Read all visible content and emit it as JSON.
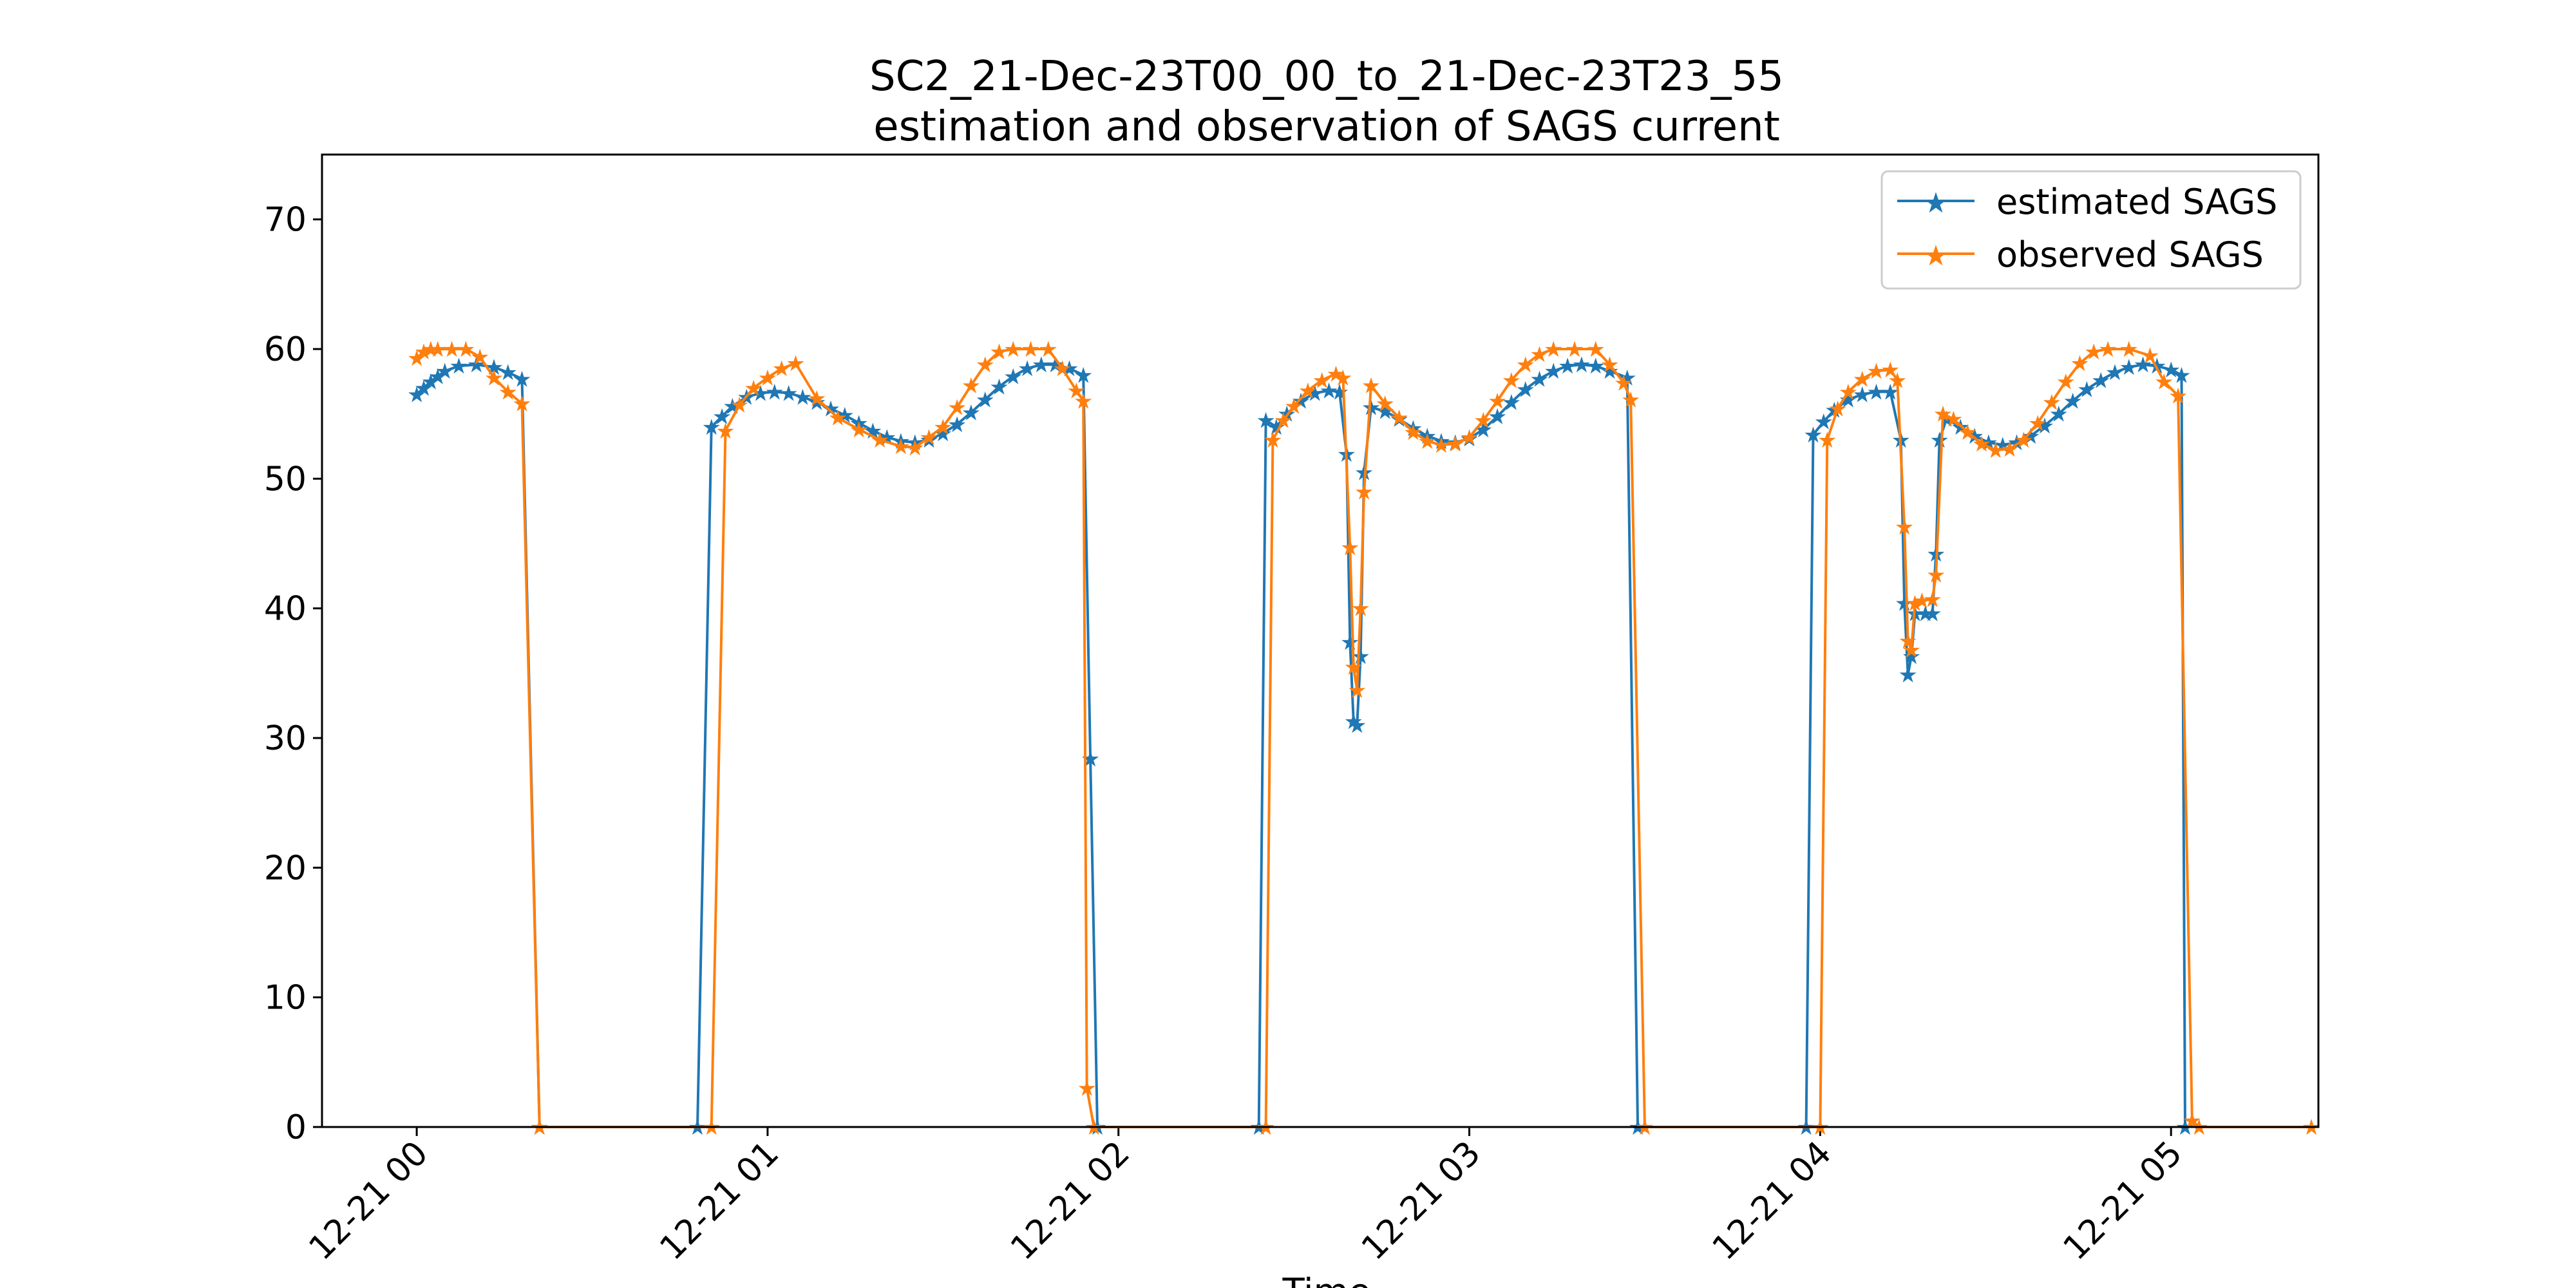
{
  "chart_data": {
    "type": "line",
    "title_line1": "SC2_21-Dec-23T00_00_to_21-Dec-23T23_55",
    "title_line2": "estimation and observation of SAGS current",
    "xlabel": "Time",
    "ylabel": "",
    "ylim": [
      0,
      75
    ],
    "xlim_hours": [
      -0.27,
      5.42
    ],
    "yticks": [
      0,
      10,
      20,
      30,
      40,
      50,
      60,
      70
    ],
    "xticks": [
      {
        "hour": 0,
        "label": "12-21 00"
      },
      {
        "hour": 1,
        "label": "12-21 01"
      },
      {
        "hour": 2,
        "label": "12-21 02"
      },
      {
        "hour": 3,
        "label": "12-21 03"
      },
      {
        "hour": 4,
        "label": "12-21 04"
      },
      {
        "hour": 5,
        "label": "12-21 05"
      }
    ],
    "legend": {
      "location": "upper right"
    },
    "series": [
      {
        "name": "estimated SAGS",
        "color": "#1f77b4",
        "marker": "star",
        "points": [
          [
            0.0,
            56.5
          ],
          [
            0.02,
            57.0
          ],
          [
            0.04,
            57.5
          ],
          [
            0.06,
            57.9
          ],
          [
            0.08,
            58.3
          ],
          [
            0.12,
            58.7
          ],
          [
            0.17,
            58.8
          ],
          [
            0.22,
            58.6
          ],
          [
            0.26,
            58.2
          ],
          [
            0.3,
            57.7
          ],
          [
            0.35,
            0
          ],
          [
            0.8,
            0
          ],
          [
            0.84,
            54.0
          ],
          [
            0.87,
            54.8
          ],
          [
            0.9,
            55.6
          ],
          [
            0.94,
            56.3
          ],
          [
            0.98,
            56.6
          ],
          [
            1.02,
            56.7
          ],
          [
            1.06,
            56.6
          ],
          [
            1.1,
            56.3
          ],
          [
            1.14,
            55.9
          ],
          [
            1.18,
            55.4
          ],
          [
            1.22,
            54.9
          ],
          [
            1.26,
            54.3
          ],
          [
            1.3,
            53.7
          ],
          [
            1.34,
            53.2
          ],
          [
            1.38,
            52.9
          ],
          [
            1.42,
            52.8
          ],
          [
            1.46,
            53.0
          ],
          [
            1.5,
            53.5
          ],
          [
            1.54,
            54.2
          ],
          [
            1.58,
            55.1
          ],
          [
            1.62,
            56.1
          ],
          [
            1.66,
            57.1
          ],
          [
            1.7,
            57.9
          ],
          [
            1.74,
            58.5
          ],
          [
            1.78,
            58.8
          ],
          [
            1.82,
            58.8
          ],
          [
            1.86,
            58.5
          ],
          [
            1.9,
            58.0
          ],
          [
            1.92,
            28.4
          ],
          [
            1.94,
            0
          ],
          [
            2.4,
            0
          ],
          [
            2.42,
            54.5
          ],
          [
            2.45,
            54.0
          ],
          [
            2.48,
            55.0
          ],
          [
            2.52,
            56.0
          ],
          [
            2.56,
            56.6
          ],
          [
            2.6,
            56.8
          ],
          [
            2.63,
            56.7
          ],
          [
            2.65,
            51.9
          ],
          [
            2.66,
            37.4
          ],
          [
            2.67,
            31.3
          ],
          [
            2.68,
            31.0
          ],
          [
            2.69,
            36.3
          ],
          [
            2.7,
            50.5
          ],
          [
            2.72,
            55.5
          ],
          [
            2.76,
            55.2
          ],
          [
            2.8,
            54.6
          ],
          [
            2.84,
            53.9
          ],
          [
            2.88,
            53.3
          ],
          [
            2.92,
            52.9
          ],
          [
            2.96,
            52.8
          ],
          [
            3.0,
            53.1
          ],
          [
            3.04,
            53.8
          ],
          [
            3.08,
            54.8
          ],
          [
            3.12,
            55.9
          ],
          [
            3.16,
            56.9
          ],
          [
            3.2,
            57.7
          ],
          [
            3.24,
            58.3
          ],
          [
            3.28,
            58.7
          ],
          [
            3.32,
            58.8
          ],
          [
            3.36,
            58.7
          ],
          [
            3.4,
            58.3
          ],
          [
            3.45,
            57.8
          ],
          [
            3.48,
            0
          ],
          [
            3.96,
            0
          ],
          [
            3.98,
            53.4
          ],
          [
            4.01,
            54.4
          ],
          [
            4.04,
            55.3
          ],
          [
            4.08,
            56.1
          ],
          [
            4.12,
            56.5
          ],
          [
            4.16,
            56.7
          ],
          [
            4.2,
            56.7
          ],
          [
            4.23,
            53.0
          ],
          [
            4.24,
            40.4
          ],
          [
            4.25,
            34.9
          ],
          [
            4.26,
            36.3
          ],
          [
            4.27,
            39.6
          ],
          [
            4.3,
            39.6
          ],
          [
            4.32,
            39.6
          ],
          [
            4.33,
            44.2
          ],
          [
            4.34,
            53.0
          ],
          [
            4.36,
            54.6
          ],
          [
            4.4,
            54.0
          ],
          [
            4.44,
            53.3
          ],
          [
            4.48,
            52.8
          ],
          [
            4.52,
            52.6
          ],
          [
            4.56,
            52.8
          ],
          [
            4.6,
            53.3
          ],
          [
            4.64,
            54.1
          ],
          [
            4.68,
            55.0
          ],
          [
            4.72,
            56.0
          ],
          [
            4.76,
            56.9
          ],
          [
            4.8,
            57.6
          ],
          [
            4.84,
            58.2
          ],
          [
            4.88,
            58.6
          ],
          [
            4.92,
            58.8
          ],
          [
            4.96,
            58.7
          ],
          [
            5.0,
            58.4
          ],
          [
            5.03,
            58.0
          ],
          [
            5.04,
            0
          ]
        ]
      },
      {
        "name": "observed SAGS",
        "color": "#ff7f0e",
        "marker": "star",
        "points": [
          [
            0.0,
            59.3
          ],
          [
            0.02,
            59.8
          ],
          [
            0.04,
            60.0
          ],
          [
            0.06,
            60.0
          ],
          [
            0.1,
            60.0
          ],
          [
            0.14,
            60.0
          ],
          [
            0.18,
            59.4
          ],
          [
            0.22,
            57.8
          ],
          [
            0.26,
            56.7
          ],
          [
            0.3,
            55.8
          ],
          [
            0.35,
            0
          ],
          [
            0.84,
            0
          ],
          [
            0.88,
            53.7
          ],
          [
            0.92,
            55.7
          ],
          [
            0.96,
            57.0
          ],
          [
            1.0,
            57.8
          ],
          [
            1.04,
            58.5
          ],
          [
            1.08,
            58.9
          ],
          [
            1.14,
            56.2
          ],
          [
            1.2,
            54.7
          ],
          [
            1.26,
            53.8
          ],
          [
            1.32,
            53.0
          ],
          [
            1.38,
            52.5
          ],
          [
            1.42,
            52.4
          ],
          [
            1.46,
            53.2
          ],
          [
            1.5,
            54.0
          ],
          [
            1.54,
            55.5
          ],
          [
            1.58,
            57.2
          ],
          [
            1.62,
            58.8
          ],
          [
            1.66,
            59.8
          ],
          [
            1.7,
            60.0
          ],
          [
            1.75,
            60.0
          ],
          [
            1.8,
            60.0
          ],
          [
            1.84,
            58.5
          ],
          [
            1.88,
            56.8
          ],
          [
            1.9,
            56.0
          ],
          [
            1.91,
            3.0
          ],
          [
            1.93,
            0
          ],
          [
            2.42,
            0
          ],
          [
            2.44,
            53.0
          ],
          [
            2.47,
            54.5
          ],
          [
            2.5,
            55.6
          ],
          [
            2.54,
            56.8
          ],
          [
            2.58,
            57.6
          ],
          [
            2.62,
            58.1
          ],
          [
            2.64,
            57.8
          ],
          [
            2.66,
            44.7
          ],
          [
            2.67,
            35.5
          ],
          [
            2.68,
            33.7
          ],
          [
            2.69,
            40.0
          ],
          [
            2.7,
            49.0
          ],
          [
            2.72,
            57.2
          ],
          [
            2.76,
            55.8
          ],
          [
            2.8,
            54.7
          ],
          [
            2.84,
            53.6
          ],
          [
            2.88,
            52.9
          ],
          [
            2.92,
            52.6
          ],
          [
            2.96,
            52.7
          ],
          [
            3.0,
            53.2
          ],
          [
            3.04,
            54.5
          ],
          [
            3.08,
            56.0
          ],
          [
            3.12,
            57.6
          ],
          [
            3.16,
            58.8
          ],
          [
            3.2,
            59.6
          ],
          [
            3.24,
            60.0
          ],
          [
            3.3,
            60.0
          ],
          [
            3.36,
            60.0
          ],
          [
            3.4,
            58.8
          ],
          [
            3.44,
            57.4
          ],
          [
            3.46,
            56.1
          ],
          [
            3.5,
            0
          ],
          [
            4.0,
            0
          ],
          [
            4.02,
            53.0
          ],
          [
            4.05,
            55.4
          ],
          [
            4.08,
            56.7
          ],
          [
            4.12,
            57.7
          ],
          [
            4.16,
            58.3
          ],
          [
            4.2,
            58.4
          ],
          [
            4.22,
            57.6
          ],
          [
            4.24,
            46.3
          ],
          [
            4.25,
            37.5
          ],
          [
            4.26,
            36.8
          ],
          [
            4.27,
            40.4
          ],
          [
            4.29,
            40.6
          ],
          [
            4.32,
            40.7
          ],
          [
            4.33,
            42.6
          ],
          [
            4.35,
            55.0
          ],
          [
            4.38,
            54.6
          ],
          [
            4.42,
            53.6
          ],
          [
            4.46,
            52.7
          ],
          [
            4.5,
            52.2
          ],
          [
            4.54,
            52.3
          ],
          [
            4.58,
            53.0
          ],
          [
            4.62,
            54.3
          ],
          [
            4.66,
            55.9
          ],
          [
            4.7,
            57.5
          ],
          [
            4.74,
            58.9
          ],
          [
            4.78,
            59.8
          ],
          [
            4.82,
            60.0
          ],
          [
            4.88,
            60.0
          ],
          [
            4.94,
            59.5
          ],
          [
            4.98,
            57.5
          ],
          [
            5.02,
            56.4
          ],
          [
            5.06,
            0.5
          ],
          [
            5.08,
            0
          ],
          [
            5.4,
            0
          ]
        ]
      }
    ]
  }
}
